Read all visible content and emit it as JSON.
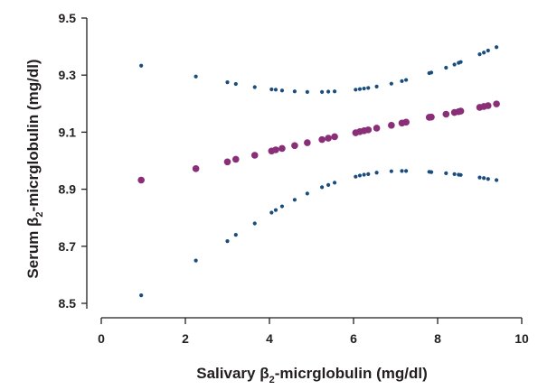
{
  "chart_data": {
    "type": "scatter",
    "xlabel": {
      "main": "Salivary β",
      "sub": "2",
      "rest": "-micrglobulin (mg/dl)"
    },
    "ylabel": {
      "main": "Serum β",
      "sub": "2",
      "rest": "-micrglobulin (mg/dl)"
    },
    "xlim": [
      0,
      10
    ],
    "ylim": [
      8.47,
      9.5
    ],
    "xticks": [
      0,
      2,
      4,
      6,
      8,
      10
    ],
    "yticks": [
      8.5,
      8.7,
      8.9,
      9.1,
      9.3,
      9.5
    ],
    "ytick_labels": [
      "8.5",
      "8.7",
      "8.9",
      "9.1",
      "9.3",
      "9.5"
    ],
    "grid": false,
    "colors": {
      "fit": "#8b2e78",
      "band": "#1a4d7d",
      "axis": "#231f20"
    },
    "series": [
      {
        "role": "fit",
        "x": [
          0.95,
          2.25,
          3.0,
          3.2,
          3.65,
          4.05,
          4.15,
          4.3,
          4.6,
          4.9,
          5.25,
          5.4,
          5.55,
          6.05,
          6.15,
          6.25,
          6.35,
          6.55,
          6.9,
          7.15,
          7.25,
          7.8,
          7.85,
          8.2,
          8.4,
          8.5,
          8.55,
          9.0,
          9.1,
          9.2,
          9.4
        ],
        "y": [
          8.932,
          8.972,
          8.996,
          9.005,
          9.019,
          9.034,
          9.038,
          9.043,
          9.053,
          9.063,
          9.074,
          9.079,
          9.084,
          9.098,
          9.102,
          9.105,
          9.108,
          9.114,
          9.124,
          9.132,
          9.135,
          9.152,
          9.153,
          9.163,
          9.169,
          9.172,
          9.174,
          9.187,
          9.19,
          9.193,
          9.199
        ]
      },
      {
        "role": "upper",
        "x": [
          0.95,
          2.25,
          3.0,
          3.2,
          3.65,
          4.05,
          4.15,
          4.3,
          4.6,
          4.9,
          5.25,
          5.4,
          5.55,
          6.05,
          6.15,
          6.25,
          6.35,
          6.55,
          6.9,
          7.15,
          7.25,
          7.8,
          7.85,
          8.2,
          8.4,
          8.5,
          8.55,
          9.0,
          9.1,
          9.2,
          9.4
        ],
        "y": [
          9.333,
          9.295,
          9.275,
          9.269,
          9.258,
          9.25,
          9.249,
          9.246,
          9.243,
          9.241,
          9.241,
          9.242,
          9.243,
          9.249,
          9.251,
          9.253,
          9.255,
          9.26,
          9.27,
          9.279,
          9.283,
          9.307,
          9.309,
          9.326,
          9.337,
          9.343,
          9.346,
          9.373,
          9.379,
          9.386,
          9.398
        ]
      },
      {
        "role": "lower",
        "x": [
          0.95,
          2.25,
          3.0,
          3.2,
          3.65,
          4.05,
          4.15,
          4.3,
          4.6,
          4.9,
          5.25,
          5.4,
          5.55,
          6.05,
          6.15,
          6.25,
          6.35,
          6.55,
          6.9,
          7.15,
          7.25,
          7.8,
          7.85,
          8.2,
          8.4,
          8.5,
          8.55,
          9.0,
          9.1,
          9.2,
          9.4
        ],
        "y": [
          8.528,
          8.65,
          8.718,
          8.74,
          8.78,
          8.818,
          8.827,
          8.84,
          8.863,
          8.885,
          8.907,
          8.915,
          8.923,
          8.944,
          8.948,
          8.951,
          8.953,
          8.958,
          8.963,
          8.964,
          8.964,
          8.961,
          8.96,
          8.956,
          8.953,
          8.951,
          8.95,
          8.941,
          8.939,
          8.936,
          8.932
        ]
      }
    ]
  }
}
